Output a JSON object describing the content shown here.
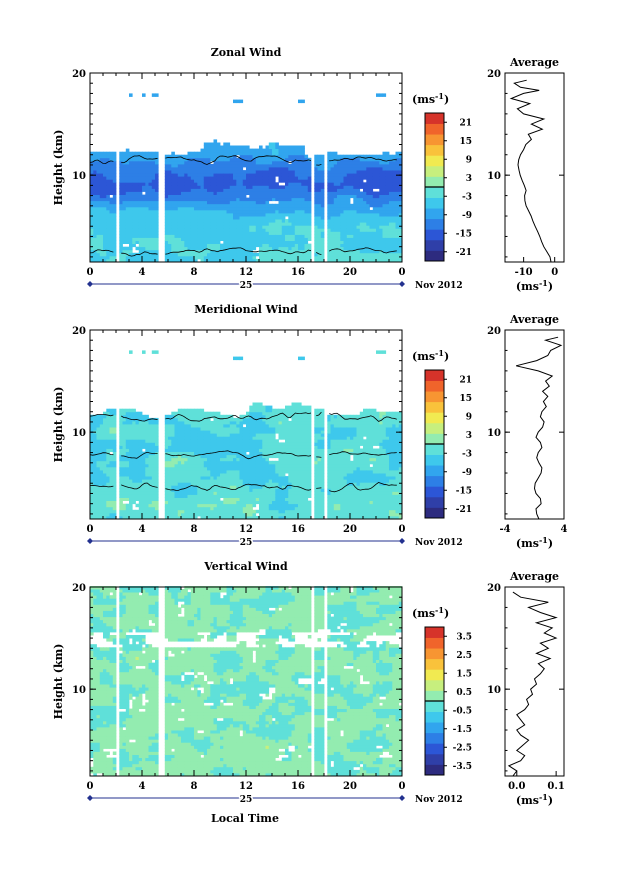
{
  "figure": {
    "time_axis_label": "Local Time",
    "date_label": "Nov 2012",
    "day_label": "25"
  },
  "chart_data": [
    {
      "type": "heatmap",
      "title": "Zonal Wind",
      "ylabel": "Height (km)",
      "x_ticks": [
        "0",
        "4",
        "8",
        "12",
        "16",
        "20",
        "0"
      ],
      "x_range": [
        0,
        24
      ],
      "y_ticks": [
        "20",
        "10"
      ],
      "y_range": [
        1.5,
        20
      ],
      "data_gaps_hours": [
        [
          1.9,
          2.3
        ],
        [
          5.3,
          5.8
        ],
        [
          17.1,
          17.3
        ],
        [
          17.9,
          18.3
        ]
      ],
      "colorbar": {
        "unit_label": "(ms",
        "unit_exp": "-1",
        "ticks": [
          "21",
          "15",
          "9",
          "3",
          "-3",
          "-9",
          "-15",
          "-21"
        ],
        "range": [
          -24,
          24
        ]
      },
      "average": {
        "title": "Average",
        "xlabel_base": "(ms",
        "xlabel_exp": "-1",
        "x_ticks": [
          "-10",
          "0"
        ],
        "x_range": [
          -16,
          3
        ],
        "y_ticks": [
          "20",
          "10"
        ],
        "profile": [
          [
            1.5,
            -1.2
          ],
          [
            2,
            -1.5
          ],
          [
            2.5,
            -2.5
          ],
          [
            3,
            -3.5
          ],
          [
            3.5,
            -4.2
          ],
          [
            4,
            -4.8
          ],
          [
            4.5,
            -5.5
          ],
          [
            5,
            -6.3
          ],
          [
            5.5,
            -7
          ],
          [
            6,
            -7.6
          ],
          [
            6.5,
            -8.4
          ],
          [
            7,
            -9.2
          ],
          [
            7.5,
            -9.6
          ],
          [
            8,
            -9.7
          ],
          [
            8.5,
            -9.2
          ],
          [
            9,
            -9.8
          ],
          [
            9.5,
            -10.5
          ],
          [
            10,
            -11.1
          ],
          [
            10.5,
            -11.5
          ],
          [
            11,
            -11.8
          ],
          [
            11.5,
            -11.6
          ],
          [
            12,
            -11
          ],
          [
            12.5,
            -10
          ],
          [
            13,
            -9.3
          ],
          [
            13.5,
            -7.5
          ],
          [
            14,
            -8.5
          ],
          [
            14.5,
            -4
          ],
          [
            15,
            -7.5
          ],
          [
            15.5,
            -3.5
          ],
          [
            16,
            -10
          ],
          [
            16.5,
            -12
          ],
          [
            17,
            -8
          ],
          [
            17.5,
            -14
          ],
          [
            18,
            -10
          ],
          [
            18.3,
            -5
          ],
          [
            18.6,
            -11
          ],
          [
            19,
            -13
          ],
          [
            19.3,
            -9
          ]
        ]
      }
    },
    {
      "type": "heatmap",
      "title": "Meridional Wind",
      "ylabel": "Height (km)",
      "x_ticks": [
        "0",
        "4",
        "8",
        "12",
        "16",
        "20",
        "0"
      ],
      "x_range": [
        0,
        24
      ],
      "y_ticks": [
        "20",
        "10"
      ],
      "y_range": [
        1.5,
        20
      ],
      "data_gaps_hours": [
        [
          1.9,
          2.3
        ],
        [
          5.3,
          5.8
        ],
        [
          17.1,
          17.3
        ],
        [
          17.9,
          18.3
        ]
      ],
      "colorbar": {
        "unit_label": "(ms",
        "unit_exp": "-1",
        "ticks": [
          "21",
          "15",
          "9",
          "3",
          "-3",
          "-9",
          "-15",
          "-21"
        ],
        "range": [
          -24,
          24
        ]
      },
      "average": {
        "title": "Average",
        "xlabel_base": "(ms",
        "xlabel_exp": "-1",
        "x_ticks": [
          "-4",
          "4"
        ],
        "x_range": [
          -4,
          4
        ],
        "y_ticks": [
          "20",
          "10"
        ],
        "profile": [
          [
            1.5,
            0.6
          ],
          [
            2,
            0.3
          ],
          [
            2.5,
            0.2
          ],
          [
            3,
            0.9
          ],
          [
            3.5,
            0.8
          ],
          [
            4,
            0.2
          ],
          [
            4.5,
            0
          ],
          [
            5,
            0.1
          ],
          [
            5.5,
            0.5
          ],
          [
            6,
            0.9
          ],
          [
            6.5,
            1
          ],
          [
            7,
            0.6
          ],
          [
            7.5,
            0.3
          ],
          [
            8,
            0.5
          ],
          [
            8.5,
            1
          ],
          [
            9,
            0.8
          ],
          [
            9.5,
            0.2
          ],
          [
            10,
            0.5
          ],
          [
            10.5,
            1.1
          ],
          [
            11,
            1.3
          ],
          [
            11.5,
            0.8
          ],
          [
            12,
            1
          ],
          [
            12.5,
            1.6
          ],
          [
            13,
            1.2
          ],
          [
            13.5,
            1.8
          ],
          [
            14,
            1.1
          ],
          [
            14.5,
            2
          ],
          [
            15,
            1.5
          ],
          [
            15.5,
            2.4
          ],
          [
            16,
            0.5
          ],
          [
            16.5,
            -2.5
          ],
          [
            17,
            0.3
          ],
          [
            17.5,
            1.8
          ],
          [
            18,
            2.2
          ],
          [
            18.5,
            3.6
          ],
          [
            19,
            1.5
          ],
          [
            19.3,
            3.2
          ]
        ]
      }
    },
    {
      "type": "heatmap",
      "title": "Vertical Wind",
      "ylabel": "Height (km)",
      "x_ticks": [
        "0",
        "4",
        "8",
        "12",
        "16",
        "20",
        "0"
      ],
      "x_range": [
        0,
        24
      ],
      "y_ticks": [
        "20",
        "10"
      ],
      "y_range": [
        1.5,
        20
      ],
      "data_gaps_hours": [
        [
          1.9,
          2.3
        ],
        [
          5.3,
          5.8
        ],
        [
          17.1,
          17.3
        ],
        [
          17.9,
          18.3
        ]
      ],
      "colorbar": {
        "unit_label": "(ms",
        "unit_exp": "-1",
        "ticks": [
          "3.5",
          "2.5",
          "1.5",
          "0.5",
          "-0.5",
          "-1.5",
          "-2.5",
          "-3.5"
        ],
        "range": [
          -4,
          4
        ]
      },
      "average": {
        "title": "Average",
        "xlabel_base": "(ms",
        "xlabel_exp": "-1",
        "x_ticks": [
          "0.0",
          "0.1"
        ],
        "x_range": [
          -0.03,
          0.12
        ],
        "y_ticks": [
          "20",
          "10"
        ],
        "profile": [
          [
            1.5,
            -0.01
          ],
          [
            2,
            0.0
          ],
          [
            2.5,
            -0.02
          ],
          [
            3,
            0.01
          ],
          [
            3.5,
            0.02
          ],
          [
            4,
            0.0
          ],
          [
            4.5,
            0.015
          ],
          [
            5,
            0.03
          ],
          [
            5.5,
            0.01
          ],
          [
            6,
            0.0
          ],
          [
            6.5,
            0.02
          ],
          [
            7,
            0.01
          ],
          [
            7.5,
            0.0
          ],
          [
            8,
            0.02
          ],
          [
            8.5,
            0.03
          ],
          [
            9,
            0.025
          ],
          [
            9.5,
            0.04
          ],
          [
            10,
            0.035
          ],
          [
            10.5,
            0.05
          ],
          [
            11,
            0.045
          ],
          [
            11.5,
            0.06
          ],
          [
            12,
            0.07
          ],
          [
            12.5,
            0.055
          ],
          [
            13,
            0.085
          ],
          [
            13.5,
            0.05
          ],
          [
            14,
            0.08
          ],
          [
            14.5,
            0.06
          ],
          [
            15,
            0.1
          ],
          [
            15.5,
            0.07
          ],
          [
            16,
            0.09
          ],
          [
            16.5,
            0.05
          ],
          [
            17,
            0.1
          ],
          [
            17.5,
            0.06
          ],
          [
            18,
            0.03
          ],
          [
            18.5,
            0.08
          ],
          [
            19,
            0.01
          ],
          [
            19.5,
            -0.01
          ]
        ]
      }
    }
  ]
}
